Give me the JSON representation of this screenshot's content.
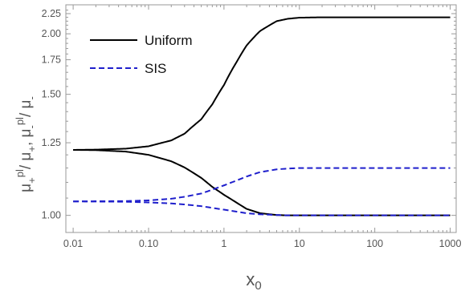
{
  "chart_data": {
    "type": "line",
    "xlabel": "x",
    "xlabel_sub": "0",
    "ylabel_parts": [
      {
        "t": "μ",
        "k": "n"
      },
      {
        "t": "+",
        "k": "sub"
      },
      {
        "t": "pl",
        "k": "sup"
      },
      {
        "t": "/ μ",
        "k": "n"
      },
      {
        "t": "+",
        "k": "sub"
      },
      {
        "t": ", μ",
        "k": "n"
      },
      {
        "t": "-",
        "k": "sub"
      },
      {
        "t": "pl",
        "k": "sup"
      },
      {
        "t": "/ μ",
        "k": "n"
      },
      {
        "t": "-",
        "k": "sub"
      }
    ],
    "x_scale": "log",
    "y_scale": "reciprocal",
    "xlim": [
      0.008,
      1200
    ],
    "ylim": [
      0.955,
      2.38
    ],
    "x_ticks": [
      0.01,
      0.1,
      1,
      10,
      100,
      1000
    ],
    "x_tick_labels": [
      "0.01",
      "0.10",
      "1",
      "10",
      "100",
      "1000"
    ],
    "y_ticks": [
      1.0,
      1.25,
      1.5,
      1.75,
      2.0,
      2.25
    ],
    "y_tick_labels": [
      "1.00",
      "1.25",
      "1.50",
      "1.75",
      "2.00",
      "2.25"
    ],
    "legend_position": "top-left",
    "grid": false,
    "series": [
      {
        "name": "Uniform",
        "style": "solid",
        "color": "#000000",
        "show_in_legend": true,
        "x": [
          0.01,
          0.02,
          0.05,
          0.1,
          0.2,
          0.3,
          0.5,
          0.7,
          1,
          1.5,
          2,
          3,
          5,
          7,
          10,
          20,
          50,
          100,
          1000
        ],
        "y": [
          1.22,
          1.221,
          1.225,
          1.235,
          1.26,
          1.29,
          1.36,
          1.44,
          1.56,
          1.74,
          1.88,
          2.03,
          2.15,
          2.18,
          2.195,
          2.2,
          2.2,
          2.2,
          2.2
        ]
      },
      {
        "name": "",
        "style": "solid",
        "color": "#000000",
        "show_in_legend": false,
        "x": [
          0.01,
          0.02,
          0.05,
          0.1,
          0.2,
          0.3,
          0.5,
          0.7,
          1,
          1.5,
          2,
          3,
          5,
          7,
          10,
          100,
          1000
        ],
        "y": [
          1.22,
          1.219,
          1.213,
          1.2,
          1.175,
          1.152,
          1.115,
          1.085,
          1.06,
          1.035,
          1.018,
          1.006,
          1.001,
          1.0,
          1.0,
          1.0,
          1.0
        ]
      },
      {
        "name": "SIS",
        "style": "dashed",
        "color": "#1f1fcc",
        "show_in_legend": true,
        "x": [
          0.01,
          0.05,
          0.1,
          0.2,
          0.3,
          0.5,
          0.7,
          1,
          1.5,
          2,
          3,
          5,
          7,
          10,
          20,
          100,
          1000
        ],
        "y": [
          1.04,
          1.041,
          1.043,
          1.048,
          1.054,
          1.064,
          1.076,
          1.09,
          1.107,
          1.12,
          1.135,
          1.145,
          1.148,
          1.15,
          1.15,
          1.15,
          1.15
        ]
      },
      {
        "name": "",
        "style": "dashed",
        "color": "#1f1fcc",
        "show_in_legend": false,
        "x": [
          0.01,
          0.05,
          0.1,
          0.2,
          0.3,
          0.5,
          0.7,
          1,
          1.5,
          2,
          3,
          5,
          7,
          10,
          100,
          1000
        ],
        "y": [
          1.04,
          1.039,
          1.037,
          1.034,
          1.031,
          1.026,
          1.021,
          1.016,
          1.01,
          1.006,
          1.003,
          1.001,
          1.0,
          1.0,
          1.0,
          1.0
        ]
      }
    ]
  }
}
